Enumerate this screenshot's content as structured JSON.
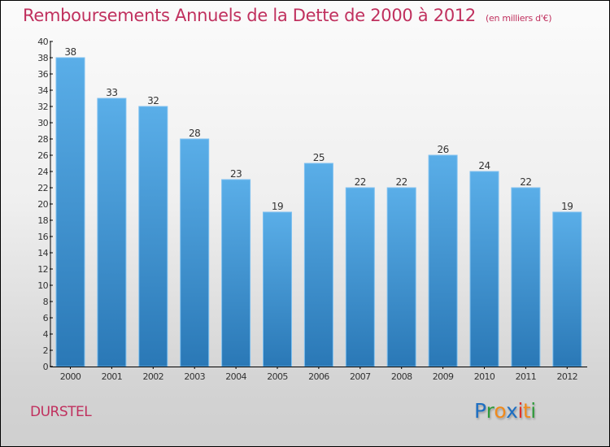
{
  "header": {
    "title": "Remboursements Annuels de la Dette de 2000 à 2012",
    "subtitle": "(en milliers d'€)"
  },
  "footer": {
    "city": "DURSTEL",
    "logo": {
      "letters": [
        {
          "char": "P",
          "color": "#1e6fc2"
        },
        {
          "char": "r",
          "color": "#2f9a3a"
        },
        {
          "char": "o",
          "color": "#f08a1c"
        },
        {
          "char": "x",
          "color": "#1e6fc2"
        },
        {
          "char": "i",
          "color": "#e0312b"
        },
        {
          "char": "t",
          "color": "#f08a1c"
        },
        {
          "char": "i",
          "color": "#2f9a3a"
        }
      ]
    }
  },
  "colors": {
    "title": "#c0305e",
    "bar_top": "#5aaee8",
    "bar_bottom": "#2a78b6",
    "bar_edge": "#7ec0f0",
    "axis": "#000000"
  },
  "chart_data": {
    "type": "bar",
    "title": "Remboursements Annuels de la Dette de 2000 à 2012",
    "subtitle": "(en milliers d'€)",
    "xlabel": "",
    "ylabel": "",
    "categories": [
      "2000",
      "2001",
      "2002",
      "2003",
      "2004",
      "2005",
      "2006",
      "2007",
      "2008",
      "2009",
      "2010",
      "2011",
      "2012"
    ],
    "values": [
      38,
      33,
      32,
      28,
      23,
      19,
      25,
      22,
      22,
      26,
      24,
      22,
      19
    ],
    "data_labels": [
      "38",
      "33",
      "32",
      "28",
      "23",
      "19",
      "25",
      "22",
      "22",
      "26",
      "24",
      "22",
      "19"
    ],
    "ylim": [
      0,
      40
    ],
    "yticks": [
      0,
      2,
      4,
      6,
      8,
      10,
      12,
      14,
      16,
      18,
      20,
      22,
      24,
      26,
      28,
      30,
      32,
      34,
      36,
      38,
      40
    ],
    "grid": false,
    "legend": "none"
  }
}
